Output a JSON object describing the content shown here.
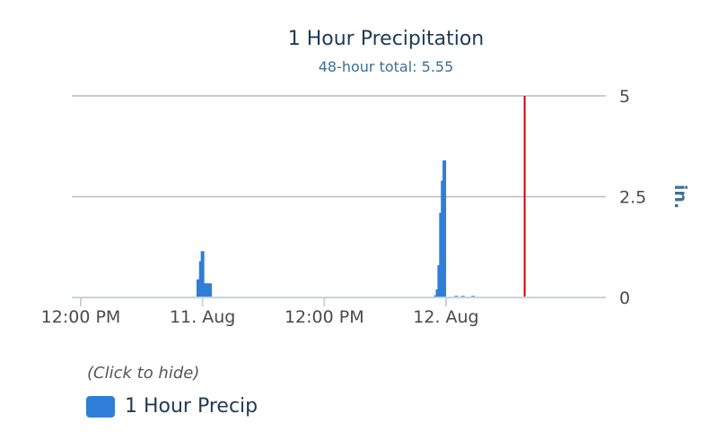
{
  "colors": {
    "series": "#2f7ed8",
    "now_line": "#cc0000",
    "grid": "#bbbbbb",
    "axis": "#c6d3e0"
  },
  "chart_data": {
    "type": "bar",
    "title": "1 Hour Precipitation",
    "subtitle": "48-hour total: 5.55",
    "ylabel": "in.",
    "xlim": [
      "2023-08-10 12:00",
      "2023-08-12 15:45"
    ],
    "ylim": [
      0,
      5
    ],
    "y_ticks": [
      "0",
      "2.5",
      "5"
    ],
    "y_tick_values": [
      0,
      2.5,
      5
    ],
    "x_ticks": [
      {
        "label": "12:00 PM",
        "t": "2023-08-10 12:00"
      },
      {
        "label": "11. Aug",
        "t": "2023-08-11 00:00"
      },
      {
        "label": "12:00 PM",
        "t": "2023-08-11 12:00"
      },
      {
        "label": "12. Aug",
        "t": "2023-08-12 00:00"
      }
    ],
    "grid": true,
    "legend_position": "bottom-left",
    "now_marker": "2023-08-12 07:45",
    "series": [
      {
        "name": "1 Hour Precip",
        "points": [
          {
            "t": "2023-08-10 23:35",
            "v": 0.45
          },
          {
            "t": "2023-08-10 23:50",
            "v": 0.9
          },
          {
            "t": "2023-08-11 00:00",
            "v": 1.15
          },
          {
            "t": "2023-08-11 00:10",
            "v": 0.35
          },
          {
            "t": "2023-08-11 00:20",
            "v": 0.35
          },
          {
            "t": "2023-08-11 00:30",
            "v": 0.35
          },
          {
            "t": "2023-08-11 00:45",
            "v": 0.35
          },
          {
            "t": "2023-08-11 23:00",
            "v": 0.05
          },
          {
            "t": "2023-08-11 23:10",
            "v": 0.2
          },
          {
            "t": "2023-08-11 23:20",
            "v": 0.8
          },
          {
            "t": "2023-08-11 23:30",
            "v": 2.1
          },
          {
            "t": "2023-08-11 23:40",
            "v": 2.9
          },
          {
            "t": "2023-08-11 23:50",
            "v": 3.4
          },
          {
            "t": "2023-08-12 01:00",
            "v": 0.04
          },
          {
            "t": "2023-08-12 01:40",
            "v": 0.04
          },
          {
            "t": "2023-08-12 02:40",
            "v": 0.04
          }
        ]
      }
    ]
  },
  "legend": {
    "hint": "(Click to hide)",
    "item_label": "1 Hour Precip"
  }
}
